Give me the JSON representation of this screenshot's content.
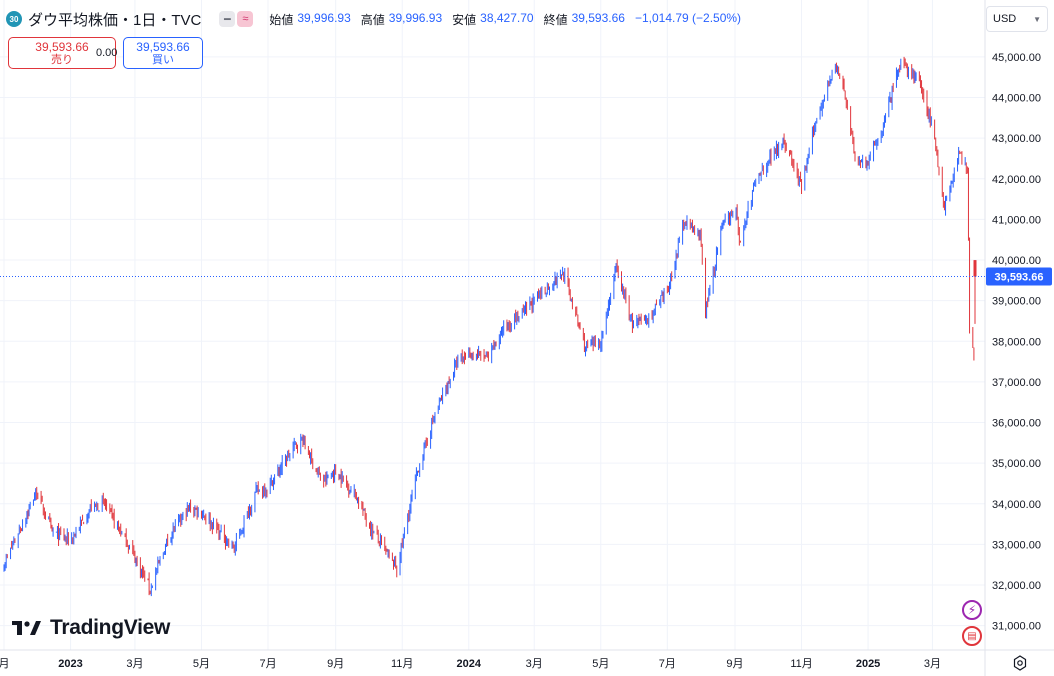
{
  "header": {
    "symbol_badge": "30",
    "title": "ダウ平均株価・1日・TVC",
    "ohlc": [
      {
        "label": "始値",
        "value": "39,996.93"
      },
      {
        "label": "高値",
        "value": "39,996.93"
      },
      {
        "label": "安値",
        "value": "38,427.70"
      },
      {
        "label": "終値",
        "value": "39,593.66"
      }
    ],
    "change": "−1,014.79 (−2.50%)"
  },
  "trade": {
    "sell_price": "39,593.66",
    "sell_label": "売り",
    "spread": "0.00",
    "buy_price": "39,593.66",
    "buy_label": "買い"
  },
  "currency": "USD",
  "logo_text": "TradingView",
  "colors": {
    "up": "#2962ff",
    "down": "#e0353b",
    "grid": "#f0f3fa",
    "axis_text": "#131722",
    "last_price_bg": "#2962ff"
  },
  "chart_data": {
    "type": "candlestick",
    "title": "ダウ平均株価・1日・TVC",
    "xlabel": "",
    "ylabel": "",
    "y_ticks": [
      "31,000.00",
      "32,000.00",
      "33,000.00",
      "34,000.00",
      "35,000.00",
      "36,000.00",
      "37,000.00",
      "38,000.00",
      "39,000.00",
      "40,000.00",
      "41,000.00",
      "42,000.00",
      "43,000.00",
      "44,000.00",
      "45,000.00"
    ],
    "y_tick_values": [
      31000,
      32000,
      33000,
      34000,
      35000,
      36000,
      37000,
      38000,
      39000,
      40000,
      41000,
      42000,
      43000,
      44000,
      45000
    ],
    "ylim": [
      30400,
      46400
    ],
    "x_ticks": [
      {
        "label": "月",
        "date": "2022-11-01"
      },
      {
        "label": "2023",
        "date": "2023-01-01"
      },
      {
        "label": "3月",
        "date": "2023-03-01"
      },
      {
        "label": "5月",
        "date": "2023-05-01"
      },
      {
        "label": "7月",
        "date": "2023-07-01"
      },
      {
        "label": "9月",
        "date": "2023-09-01"
      },
      {
        "label": "11月",
        "date": "2023-11-01"
      },
      {
        "label": "2024",
        "date": "2024-01-01"
      },
      {
        "label": "3月",
        "date": "2024-03-01"
      },
      {
        "label": "5月",
        "date": "2024-05-01"
      },
      {
        "label": "7月",
        "date": "2024-07-01"
      },
      {
        "label": "9月",
        "date": "2024-09-01"
      },
      {
        "label": "11月",
        "date": "2024-11-01"
      },
      {
        "label": "2025",
        "date": "2025-01-01"
      },
      {
        "label": "3月",
        "date": "2025-03-01"
      }
    ],
    "x_range": [
      "2022-11-01",
      "2025-04-09"
    ],
    "trend_points": [
      {
        "date": "2022-11-01",
        "close": 32500
      },
      {
        "date": "2022-12-01",
        "close": 34300
      },
      {
        "date": "2022-12-15",
        "close": 33300
      },
      {
        "date": "2023-01-01",
        "close": 33100
      },
      {
        "date": "2023-01-20",
        "close": 33900
      },
      {
        "date": "2023-02-01",
        "close": 34000
      },
      {
        "date": "2023-02-25",
        "close": 32900
      },
      {
        "date": "2023-03-15",
        "close": 31900
      },
      {
        "date": "2023-04-01",
        "close": 33200
      },
      {
        "date": "2023-04-20",
        "close": 33900
      },
      {
        "date": "2023-05-01",
        "close": 33800
      },
      {
        "date": "2023-05-31",
        "close": 32900
      },
      {
        "date": "2023-06-20",
        "close": 34300
      },
      {
        "date": "2023-07-01",
        "close": 34400
      },
      {
        "date": "2023-07-25",
        "close": 35400
      },
      {
        "date": "2023-08-01",
        "close": 35600
      },
      {
        "date": "2023-08-20",
        "close": 34500
      },
      {
        "date": "2023-09-01",
        "close": 34800
      },
      {
        "date": "2023-09-20",
        "close": 34200
      },
      {
        "date": "2023-10-01",
        "close": 33500
      },
      {
        "date": "2023-10-27",
        "close": 32400
      },
      {
        "date": "2023-11-15",
        "close": 34800
      },
      {
        "date": "2023-12-01",
        "close": 36200
      },
      {
        "date": "2023-12-20",
        "close": 37400
      },
      {
        "date": "2024-01-01",
        "close": 37700
      },
      {
        "date": "2024-01-20",
        "close": 37600
      },
      {
        "date": "2024-02-01",
        "close": 38300
      },
      {
        "date": "2024-02-20",
        "close": 38700
      },
      {
        "date": "2024-03-01",
        "close": 39000
      },
      {
        "date": "2024-03-28",
        "close": 39700
      },
      {
        "date": "2024-04-17",
        "close": 37800
      },
      {
        "date": "2024-05-01",
        "close": 38000
      },
      {
        "date": "2024-05-15",
        "close": 39800
      },
      {
        "date": "2024-05-30",
        "close": 38400
      },
      {
        "date": "2024-06-15",
        "close": 38600
      },
      {
        "date": "2024-07-01",
        "close": 39200
      },
      {
        "date": "2024-07-17",
        "close": 41000
      },
      {
        "date": "2024-08-01",
        "close": 40500
      },
      {
        "date": "2024-08-05",
        "close": 38700
      },
      {
        "date": "2024-08-20",
        "close": 40800
      },
      {
        "date": "2024-09-01",
        "close": 41300
      },
      {
        "date": "2024-09-06",
        "close": 40400
      },
      {
        "date": "2024-09-20",
        "close": 42000
      },
      {
        "date": "2024-10-15",
        "close": 43000
      },
      {
        "date": "2024-11-01",
        "close": 41800
      },
      {
        "date": "2024-11-15",
        "close": 43500
      },
      {
        "date": "2024-12-01",
        "close": 44800
      },
      {
        "date": "2024-12-10",
        "close": 44200
      },
      {
        "date": "2024-12-20",
        "close": 42500
      },
      {
        "date": "2025-01-01",
        "close": 42400
      },
      {
        "date": "2025-01-15",
        "close": 43300
      },
      {
        "date": "2025-01-30",
        "close": 44800
      },
      {
        "date": "2025-02-15",
        "close": 44500
      },
      {
        "date": "2025-03-01",
        "close": 43300
      },
      {
        "date": "2025-03-12",
        "close": 41300
      },
      {
        "date": "2025-03-25",
        "close": 42600
      },
      {
        "date": "2025-04-02",
        "close": 42200
      },
      {
        "date": "2025-04-03",
        "close": 40500
      },
      {
        "date": "2025-04-04",
        "close": 38300
      },
      {
        "date": "2025-04-07",
        "close": 37900
      },
      {
        "date": "2025-04-08",
        "close": 37600
      },
      {
        "date": "2025-04-09",
        "close": 40600
      }
    ],
    "last": {
      "open": 39996.93,
      "high": 39996.93,
      "low": 38427.7,
      "close": 39593.66,
      "label": "39,593.66"
    }
  }
}
